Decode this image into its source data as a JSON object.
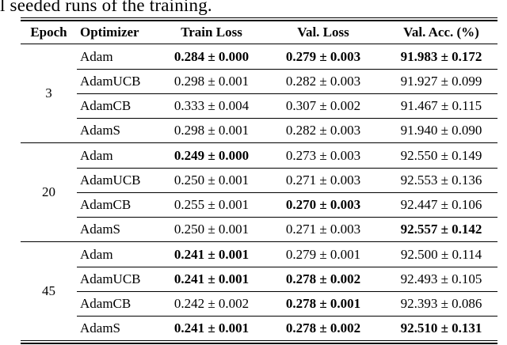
{
  "caption_fragment": "l seeded runs of the training.",
  "colors": {
    "text": "#000000",
    "rule": "#000000",
    "background": "#ffffff"
  },
  "table": {
    "headers": [
      "Epoch",
      "Optimizer",
      "Train Loss",
      "Val. Loss",
      "Val. Acc. (%)"
    ],
    "groups": [
      {
        "epoch": "3",
        "rows": [
          {
            "optimizer": "Adam",
            "train": "0.284 ± 0.000",
            "val_loss": "0.279 ± 0.003",
            "val_acc": "91.983 ± 0.172",
            "bold": [
              "train",
              "val_loss",
              "val_acc"
            ]
          },
          {
            "optimizer": "AdamUCB",
            "train": "0.298 ± 0.001",
            "val_loss": "0.282 ± 0.003",
            "val_acc": "91.927 ± 0.099",
            "bold": []
          },
          {
            "optimizer": "AdamCB",
            "train": "0.333 ± 0.004",
            "val_loss": "0.307 ± 0.002",
            "val_acc": "91.467 ± 0.115",
            "bold": []
          },
          {
            "optimizer": "AdamS",
            "train": "0.298 ± 0.001",
            "val_loss": "0.282 ± 0.003",
            "val_acc": "91.940 ± 0.090",
            "bold": []
          }
        ]
      },
      {
        "epoch": "20",
        "rows": [
          {
            "optimizer": "Adam",
            "train": "0.249 ± 0.000",
            "val_loss": "0.273 ± 0.003",
            "val_acc": "92.550 ± 0.149",
            "bold": [
              "train"
            ]
          },
          {
            "optimizer": "AdamUCB",
            "train": "0.250 ± 0.001",
            "val_loss": "0.271 ± 0.003",
            "val_acc": "92.553 ± 0.136",
            "bold": []
          },
          {
            "optimizer": "AdamCB",
            "train": "0.255 ± 0.001",
            "val_loss": "0.270 ± 0.003",
            "val_acc": "92.447 ± 0.106",
            "bold": [
              "val_loss"
            ]
          },
          {
            "optimizer": "AdamS",
            "train": "0.250 ± 0.001",
            "val_loss": "0.271 ± 0.003",
            "val_acc": "92.557 ± 0.142",
            "bold": [
              "val_acc"
            ]
          }
        ]
      },
      {
        "epoch": "45",
        "rows": [
          {
            "optimizer": "Adam",
            "train": "0.241 ± 0.001",
            "val_loss": "0.279 ± 0.001",
            "val_acc": "92.500 ± 0.114",
            "bold": [
              "train"
            ]
          },
          {
            "optimizer": "AdamUCB",
            "train": "0.241 ± 0.001",
            "val_loss": "0.278 ± 0.002",
            "val_acc": "92.493 ± 0.105",
            "bold": [
              "train",
              "val_loss"
            ]
          },
          {
            "optimizer": "AdamCB",
            "train": "0.242 ± 0.002",
            "val_loss": "0.278 ± 0.001",
            "val_acc": "92.393 ± 0.086",
            "bold": [
              "val_loss"
            ]
          },
          {
            "optimizer": "AdamS",
            "train": "0.241 ± 0.001",
            "val_loss": "0.278 ± 0.002",
            "val_acc": "92.510 ± 0.131",
            "bold": [
              "train",
              "val_loss",
              "val_acc"
            ]
          }
        ]
      }
    ]
  }
}
